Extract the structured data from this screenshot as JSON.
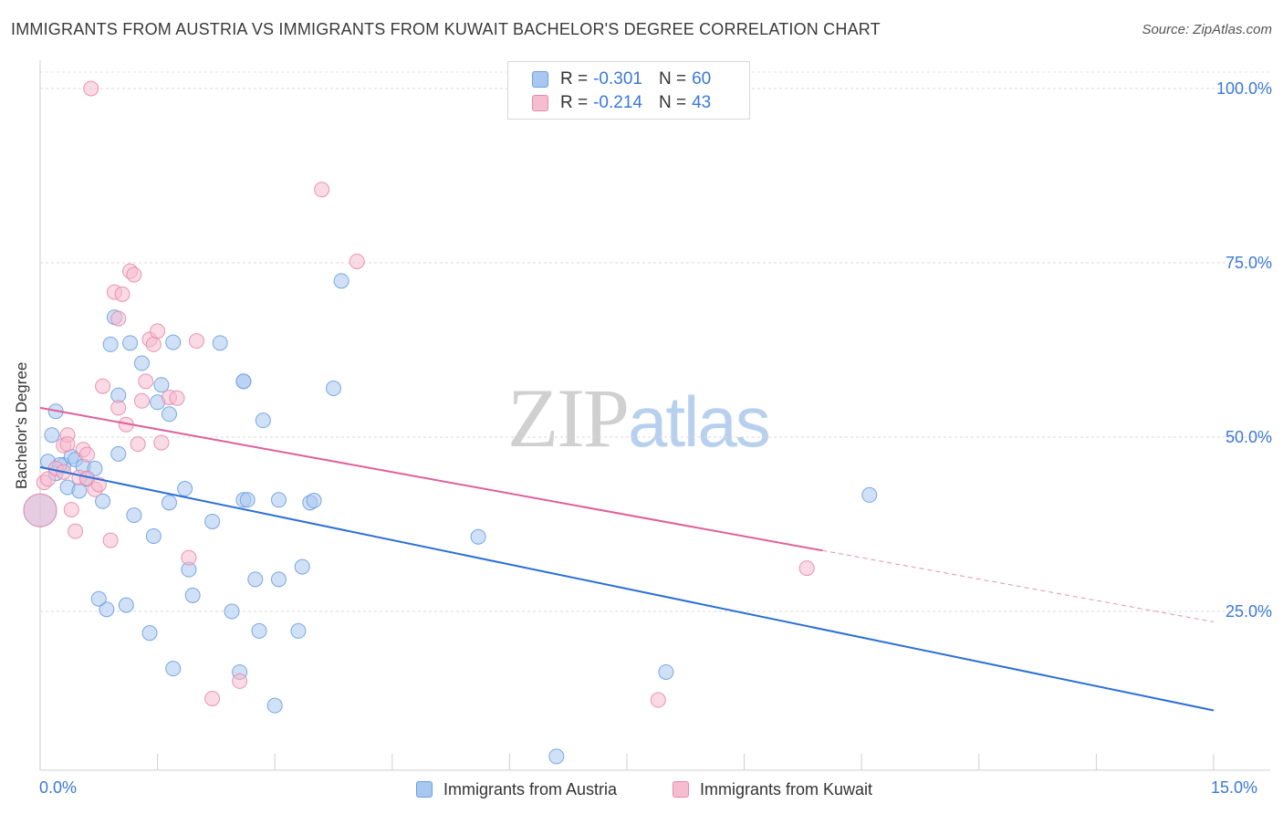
{
  "title": "IMMIGRANTS FROM AUSTRIA VS IMMIGRANTS FROM KUWAIT BACHELOR'S DEGREE CORRELATION CHART",
  "source": "Source: ZipAtlas.com",
  "watermark": {
    "part1": "ZIP",
    "part2": "atlas"
  },
  "legend": {
    "rows": [
      {
        "r_label": "R =",
        "r_value": "-0.301",
        "n_label": "N =",
        "n_value": "60",
        "color": "#a9c8f0",
        "border": "#6a9fe0"
      },
      {
        "r_label": "R =",
        "r_value": "-0.214",
        "n_label": "N =",
        "n_value": "43",
        "color": "#f6bcd0",
        "border": "#e88aaa"
      }
    ]
  },
  "bottom_legend": [
    {
      "label": "Immigrants from Austria",
      "color": "#a9c8f0",
      "border": "#6a9fe0"
    },
    {
      "label": "Immigrants from Kuwait",
      "color": "#f6bcd0",
      "border": "#e88aaa"
    }
  ],
  "axis": {
    "x_min_label": "0.0%",
    "x_max_label": "15.0%",
    "y_label": "Bachelor's Degree",
    "y_ticks": [
      "100.0%",
      "75.0%",
      "50.0%",
      "25.0%"
    ]
  },
  "chart_data": {
    "type": "scatter",
    "title": "IMMIGRANTS FROM AUSTRIA VS IMMIGRANTS FROM KUWAIT BACHELOR'S DEGREE CORRELATION CHART",
    "xlabel": "",
    "ylabel": "Bachelor's Degree",
    "xlim": [
      0,
      15
    ],
    "ylim": [
      0,
      102
    ],
    "y_ticks": [
      25,
      50,
      75,
      100
    ],
    "series": [
      {
        "name": "Immigrants from Austria",
        "color": "#a9c8f0",
        "stroke": "#6a9fe0",
        "trend": {
          "x0": 0,
          "y0": 45.7,
          "x1": 15,
          "y1": 10.8,
          "solid_to": 15
        },
        "trend_color": "#2b6fd6",
        "points": [
          [
            0.0,
            39.5
          ],
          [
            0.1,
            46.5
          ],
          [
            0.15,
            50.3
          ],
          [
            0.2,
            53.7
          ],
          [
            0.2,
            44.8
          ],
          [
            0.3,
            46.0
          ],
          [
            0.35,
            42.8
          ],
          [
            0.4,
            47.2
          ],
          [
            0.45,
            46.8
          ],
          [
            0.5,
            42.3
          ],
          [
            0.55,
            45.8
          ],
          [
            0.6,
            44.0
          ],
          [
            0.7,
            45.5
          ],
          [
            0.8,
            40.8
          ],
          [
            0.85,
            25.3
          ],
          [
            0.9,
            63.3
          ],
          [
            0.95,
            67.2
          ],
          [
            1.0,
            56.0
          ],
          [
            1.0,
            47.6
          ],
          [
            1.15,
            63.5
          ],
          [
            1.2,
            38.8
          ],
          [
            1.3,
            60.6
          ],
          [
            1.4,
            21.9
          ],
          [
            1.45,
            35.8
          ],
          [
            1.5,
            55.0
          ],
          [
            1.55,
            57.5
          ],
          [
            1.65,
            40.6
          ],
          [
            1.65,
            53.3
          ],
          [
            1.7,
            16.8
          ],
          [
            1.7,
            63.6
          ],
          [
            1.85,
            42.6
          ],
          [
            1.9,
            31.0
          ],
          [
            1.95,
            27.3
          ],
          [
            2.2,
            37.9
          ],
          [
            2.3,
            63.5
          ],
          [
            2.45,
            25.0
          ],
          [
            2.55,
            16.3
          ],
          [
            2.6,
            41.0
          ],
          [
            2.6,
            58.0
          ],
          [
            2.6,
            58.0
          ],
          [
            2.65,
            41.0
          ],
          [
            2.75,
            29.6
          ],
          [
            2.8,
            22.2
          ],
          [
            2.85,
            52.4
          ],
          [
            3.0,
            11.5
          ],
          [
            3.05,
            41.0
          ],
          [
            3.05,
            29.6
          ],
          [
            3.3,
            22.2
          ],
          [
            3.35,
            31.4
          ],
          [
            3.45,
            40.6
          ],
          [
            3.5,
            40.9
          ],
          [
            3.75,
            57.0
          ],
          [
            3.85,
            72.4
          ],
          [
            5.6,
            35.7
          ],
          [
            6.6,
            4.2
          ],
          [
            8.0,
            16.3
          ],
          [
            10.6,
            41.7
          ],
          [
            0.25,
            46.0
          ],
          [
            0.75,
            26.8
          ],
          [
            1.1,
            25.9
          ]
        ]
      },
      {
        "name": "Immigrants from Kuwait",
        "color": "#f6bcd0",
        "stroke": "#e88aaa",
        "trend": {
          "x0": 0,
          "y0": 54.2,
          "x1": 15,
          "y1": 23.5,
          "solid_to": 10.0
        },
        "trend_color": "#e0609a",
        "points": [
          [
            0.05,
            43.5
          ],
          [
            0.1,
            44.0
          ],
          [
            0.2,
            45.5
          ],
          [
            0.3,
            48.8
          ],
          [
            0.3,
            45.0
          ],
          [
            0.35,
            50.3
          ],
          [
            0.35,
            49.0
          ],
          [
            0.4,
            39.6
          ],
          [
            0.45,
            36.5
          ],
          [
            0.5,
            44.2
          ],
          [
            0.55,
            48.2
          ],
          [
            0.6,
            47.5
          ],
          [
            0.6,
            44.1
          ],
          [
            0.7,
            42.5
          ],
          [
            0.75,
            43.2
          ],
          [
            0.8,
            57.3
          ],
          [
            0.9,
            35.2
          ],
          [
            0.95,
            70.8
          ],
          [
            1.0,
            54.2
          ],
          [
            1.0,
            67.0
          ],
          [
            1.05,
            70.5
          ],
          [
            1.1,
            51.8
          ],
          [
            1.15,
            73.8
          ],
          [
            1.2,
            73.3
          ],
          [
            1.25,
            49.0
          ],
          [
            1.3,
            55.2
          ],
          [
            1.35,
            58.0
          ],
          [
            1.4,
            64.0
          ],
          [
            1.45,
            63.3
          ],
          [
            1.5,
            65.2
          ],
          [
            1.55,
            49.2
          ],
          [
            1.65,
            55.7
          ],
          [
            1.75,
            55.6
          ],
          [
            1.9,
            32.7
          ],
          [
            2.0,
            63.8
          ],
          [
            2.2,
            12.5
          ],
          [
            2.55,
            15.0
          ],
          [
            3.6,
            85.5
          ],
          [
            4.05,
            75.2
          ],
          [
            7.9,
            12.3
          ],
          [
            9.8,
            31.2
          ],
          [
            0.65,
            100.0
          ],
          [
            0.0,
            39.5
          ]
        ]
      }
    ]
  }
}
